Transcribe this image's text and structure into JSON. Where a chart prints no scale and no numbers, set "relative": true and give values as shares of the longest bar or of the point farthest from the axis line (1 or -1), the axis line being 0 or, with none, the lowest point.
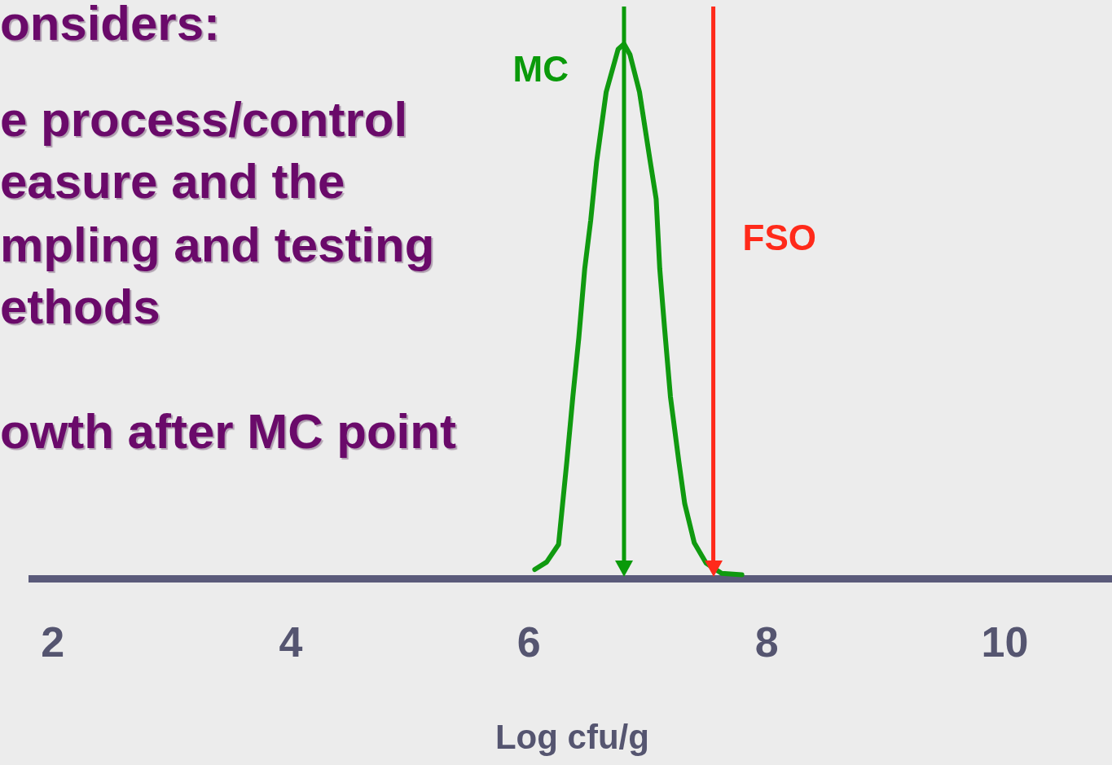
{
  "chart_data": {
    "type": "line",
    "relative": true,
    "xlabel": "Log cfu/g",
    "xlim": [
      1.83,
      10.9
    ],
    "xticks": [
      2,
      4,
      6,
      8,
      10
    ],
    "grid": false,
    "legend": false,
    "marker": "none",
    "line_style": "solid",
    "series": [
      {
        "color": "#109a10",
        "x": [
          6.05,
          6.15,
          6.25,
          6.32,
          6.37,
          6.42,
          6.47,
          6.52,
          6.57,
          6.65,
          6.75,
          6.8,
          6.85,
          6.93,
          7.02,
          7.07,
          7.1,
          7.14,
          7.19,
          7.26,
          7.31,
          7.39,
          7.49,
          7.62,
          7.79
        ],
        "values": [
          0.017,
          0.031,
          0.064,
          0.22,
          0.34,
          0.45,
          0.58,
          0.67,
          0.78,
          0.91,
          0.99,
          1,
          0.98,
          0.91,
          0.78,
          0.71,
          0.58,
          0.47,
          0.34,
          0.22,
          0.14,
          0.067,
          0.029,
          0.01,
          0.007
        ]
      }
    ],
    "ref_lines": [
      {
        "axis": "x",
        "value": 6.8,
        "label": "MC",
        "color": "#0a9a0a"
      },
      {
        "axis": "x",
        "value": 7.55,
        "label": "FSO",
        "color": "#ff2a1a"
      }
    ],
    "annotations": [
      "onsiders:",
      "e process/control",
      "easure and the",
      "mpling and testing",
      "ethods",
      "owth after MC point"
    ]
  }
}
